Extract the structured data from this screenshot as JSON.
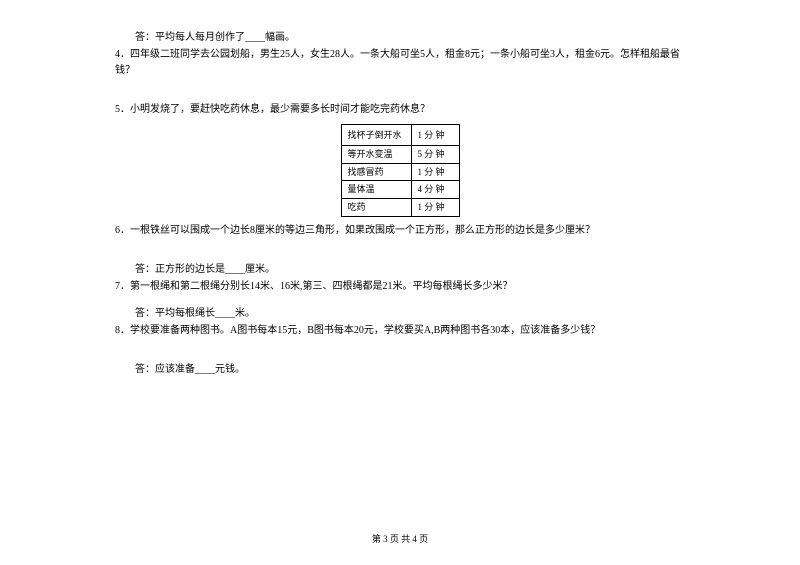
{
  "q3_answer": "答：平均每人每月创作了____幅画。",
  "q4": "4．四年级二班同学去公园划船，男生25人，女生28人。一条大船可坐5人，租金8元；一条小船可坐3人，租金6元。怎样租船最省钱？",
  "q5": "5．小明发烧了，要赶快吃药休息，最少需要多长时间才能吃完药休息？",
  "table": {
    "rows": [
      {
        "task": "找杯子倒开水",
        "time": "1 分 钟"
      },
      {
        "task": "等开水变温",
        "time": "5 分 钟"
      },
      {
        "task": "找感冒药",
        "time": "1 分 钟"
      },
      {
        "task": "量体温",
        "time": "4 分 钟"
      },
      {
        "task": "吃药",
        "time": "1 分 钟"
      }
    ]
  },
  "q6": "6．一根铁丝可以围成一个边长8厘米的等边三角形，如果改围成一个正方形，那么正方形的边长是多少厘米？",
  "q6_answer": "答：正方形的边长是____厘米。",
  "q7": "7．第一根绳和第二根绳分别长14米、16米,第三、四根绳都是21米。平均每根绳长多少米？",
  "q7_answer": "答：平均每根绳长____米。",
  "q8": "8．学校要准备两种图书。A图书每本15元，B图书每本20元，学校要买A,B两种图书各30本，应该准备多少钱？",
  "q8_answer": "答：应该准备____元钱。",
  "footer": "第 3 页 共 4 页"
}
